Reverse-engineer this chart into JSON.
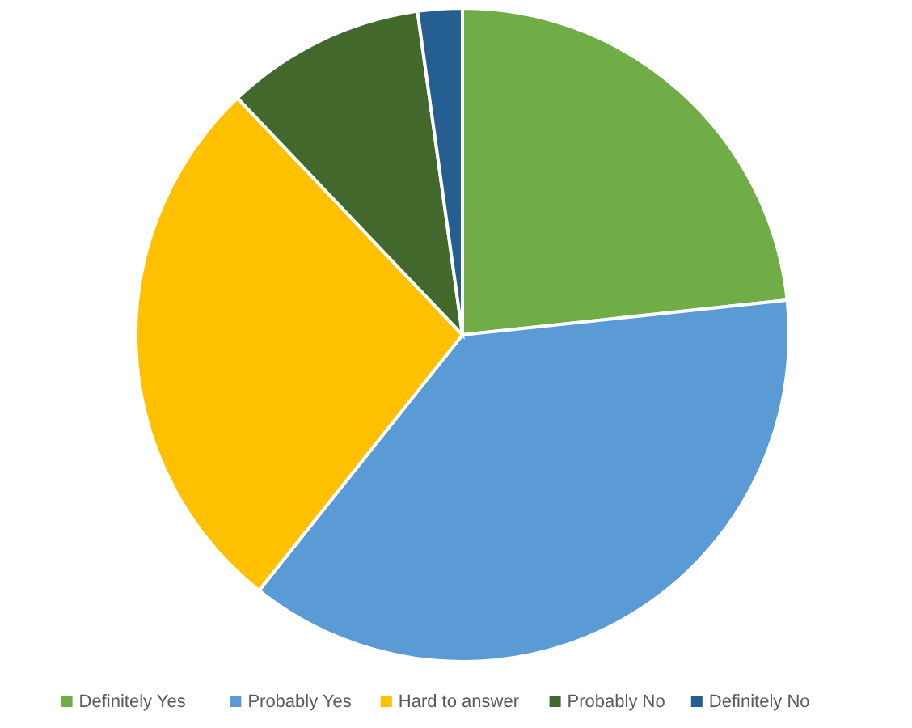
{
  "chart_data": {
    "type": "pie",
    "categories": [
      "Definitely Yes",
      "Probably Yes",
      "Hard to answer",
      "Probably No",
      "Definitely No"
    ],
    "values": [
      23.3,
      37.4,
      27.2,
      9.9,
      2.2
    ],
    "colors": [
      "#70ad47",
      "#5b9bd5",
      "#ffc000",
      "#43682b",
      "#255e91"
    ],
    "legend": "bottom"
  }
}
